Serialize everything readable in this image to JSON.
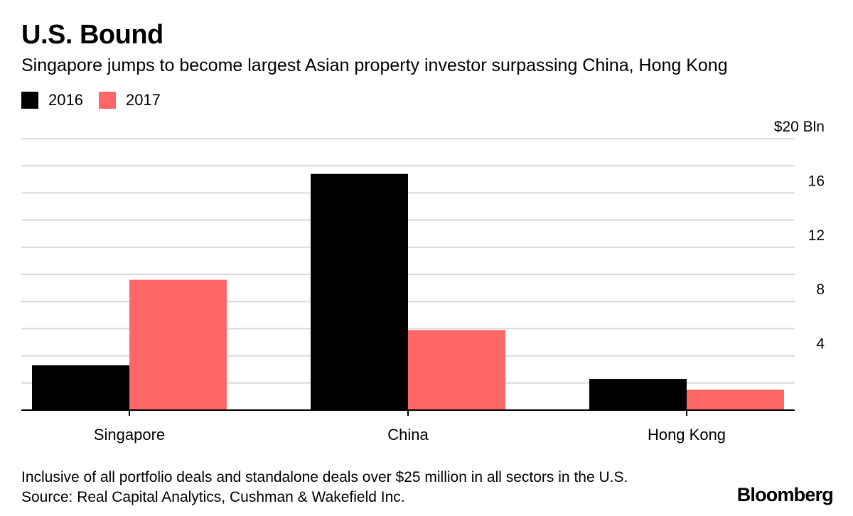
{
  "header": {
    "title": "U.S. Bound",
    "subtitle": "Singapore jumps to become largest Asian property investor surpassing China, Hong Kong"
  },
  "footer": {
    "note": "Inclusive of all portfolio deals and standalone deals over $25 million in all sectors in the U.S.",
    "source": "Source: Real Capital Analytics, Cushman & Wakefield Inc.",
    "brand": "Bloomberg"
  },
  "colors": {
    "series_2016": "#000000",
    "series_2017": "#ff6666",
    "grid": "#d9d9d9",
    "axis": "#000000"
  },
  "chart_data": {
    "type": "bar",
    "title": "U.S. Bound",
    "categories": [
      "Singapore",
      "China",
      "Hong Kong"
    ],
    "series": [
      {
        "name": "2016",
        "values": [
          3.3,
          17.4,
          2.3
        ]
      },
      {
        "name": "2017",
        "values": [
          9.6,
          5.9,
          1.5
        ]
      }
    ],
    "ylim": [
      0,
      20
    ],
    "yticks": [
      4,
      8,
      12,
      16,
      20
    ],
    "ytick_labels": [
      "4",
      "8",
      "12",
      "16",
      "$20 Bln"
    ],
    "gridlines": [
      2,
      4,
      6,
      8,
      10,
      12,
      14,
      16,
      18,
      20
    ],
    "xlabel": "",
    "ylabel": "",
    "legend_position": "top-left",
    "axis_side": "right"
  }
}
